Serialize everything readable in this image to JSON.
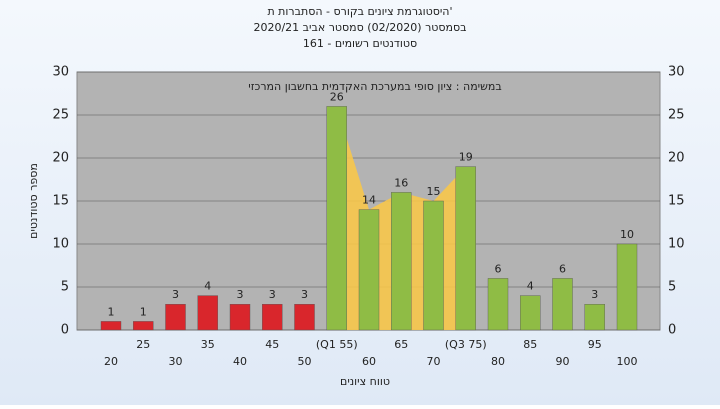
{
  "title_lines": [
    "היסטוגרמת ציונים בקורס - הסתברות ת'",
    "בסמסטר (02/2020) סמסטר אביב 2020/21",
    "סטודנטים רשומים - 161"
  ],
  "chart_data": {
    "type": "bar",
    "annotation": "במשימה : ציון סופי במערכת האקדמית בחשבון המרכזי",
    "xlabel": "טווח ציונים",
    "ylabel": "מספר סטודנטים",
    "categories": [
      "20",
      "25",
      "30",
      "35",
      "40",
      "45",
      "50",
      "(Q1 55)",
      "60",
      "65",
      "70",
      "(Q3 75)",
      "80",
      "85",
      "90",
      "95",
      "100"
    ],
    "values": [
      1,
      1,
      3,
      4,
      3,
      3,
      3,
      26,
      14,
      16,
      15,
      19,
      6,
      4,
      6,
      3,
      10
    ],
    "colors": [
      "#d9262c",
      "#d9262c",
      "#d9262c",
      "#d9262c",
      "#d9262c",
      "#d9262c",
      "#d9262c",
      "#8fbc45",
      "#8fbc45",
      "#8fbc45",
      "#8fbc45",
      "#8fbc45",
      "#8fbc45",
      "#8fbc45",
      "#8fbc45",
      "#8fbc45",
      "#8fbc45"
    ],
    "ylim": [
      0,
      30
    ],
    "yticks": [
      0,
      5,
      10,
      15,
      20,
      25,
      30
    ],
    "grid": true
  }
}
